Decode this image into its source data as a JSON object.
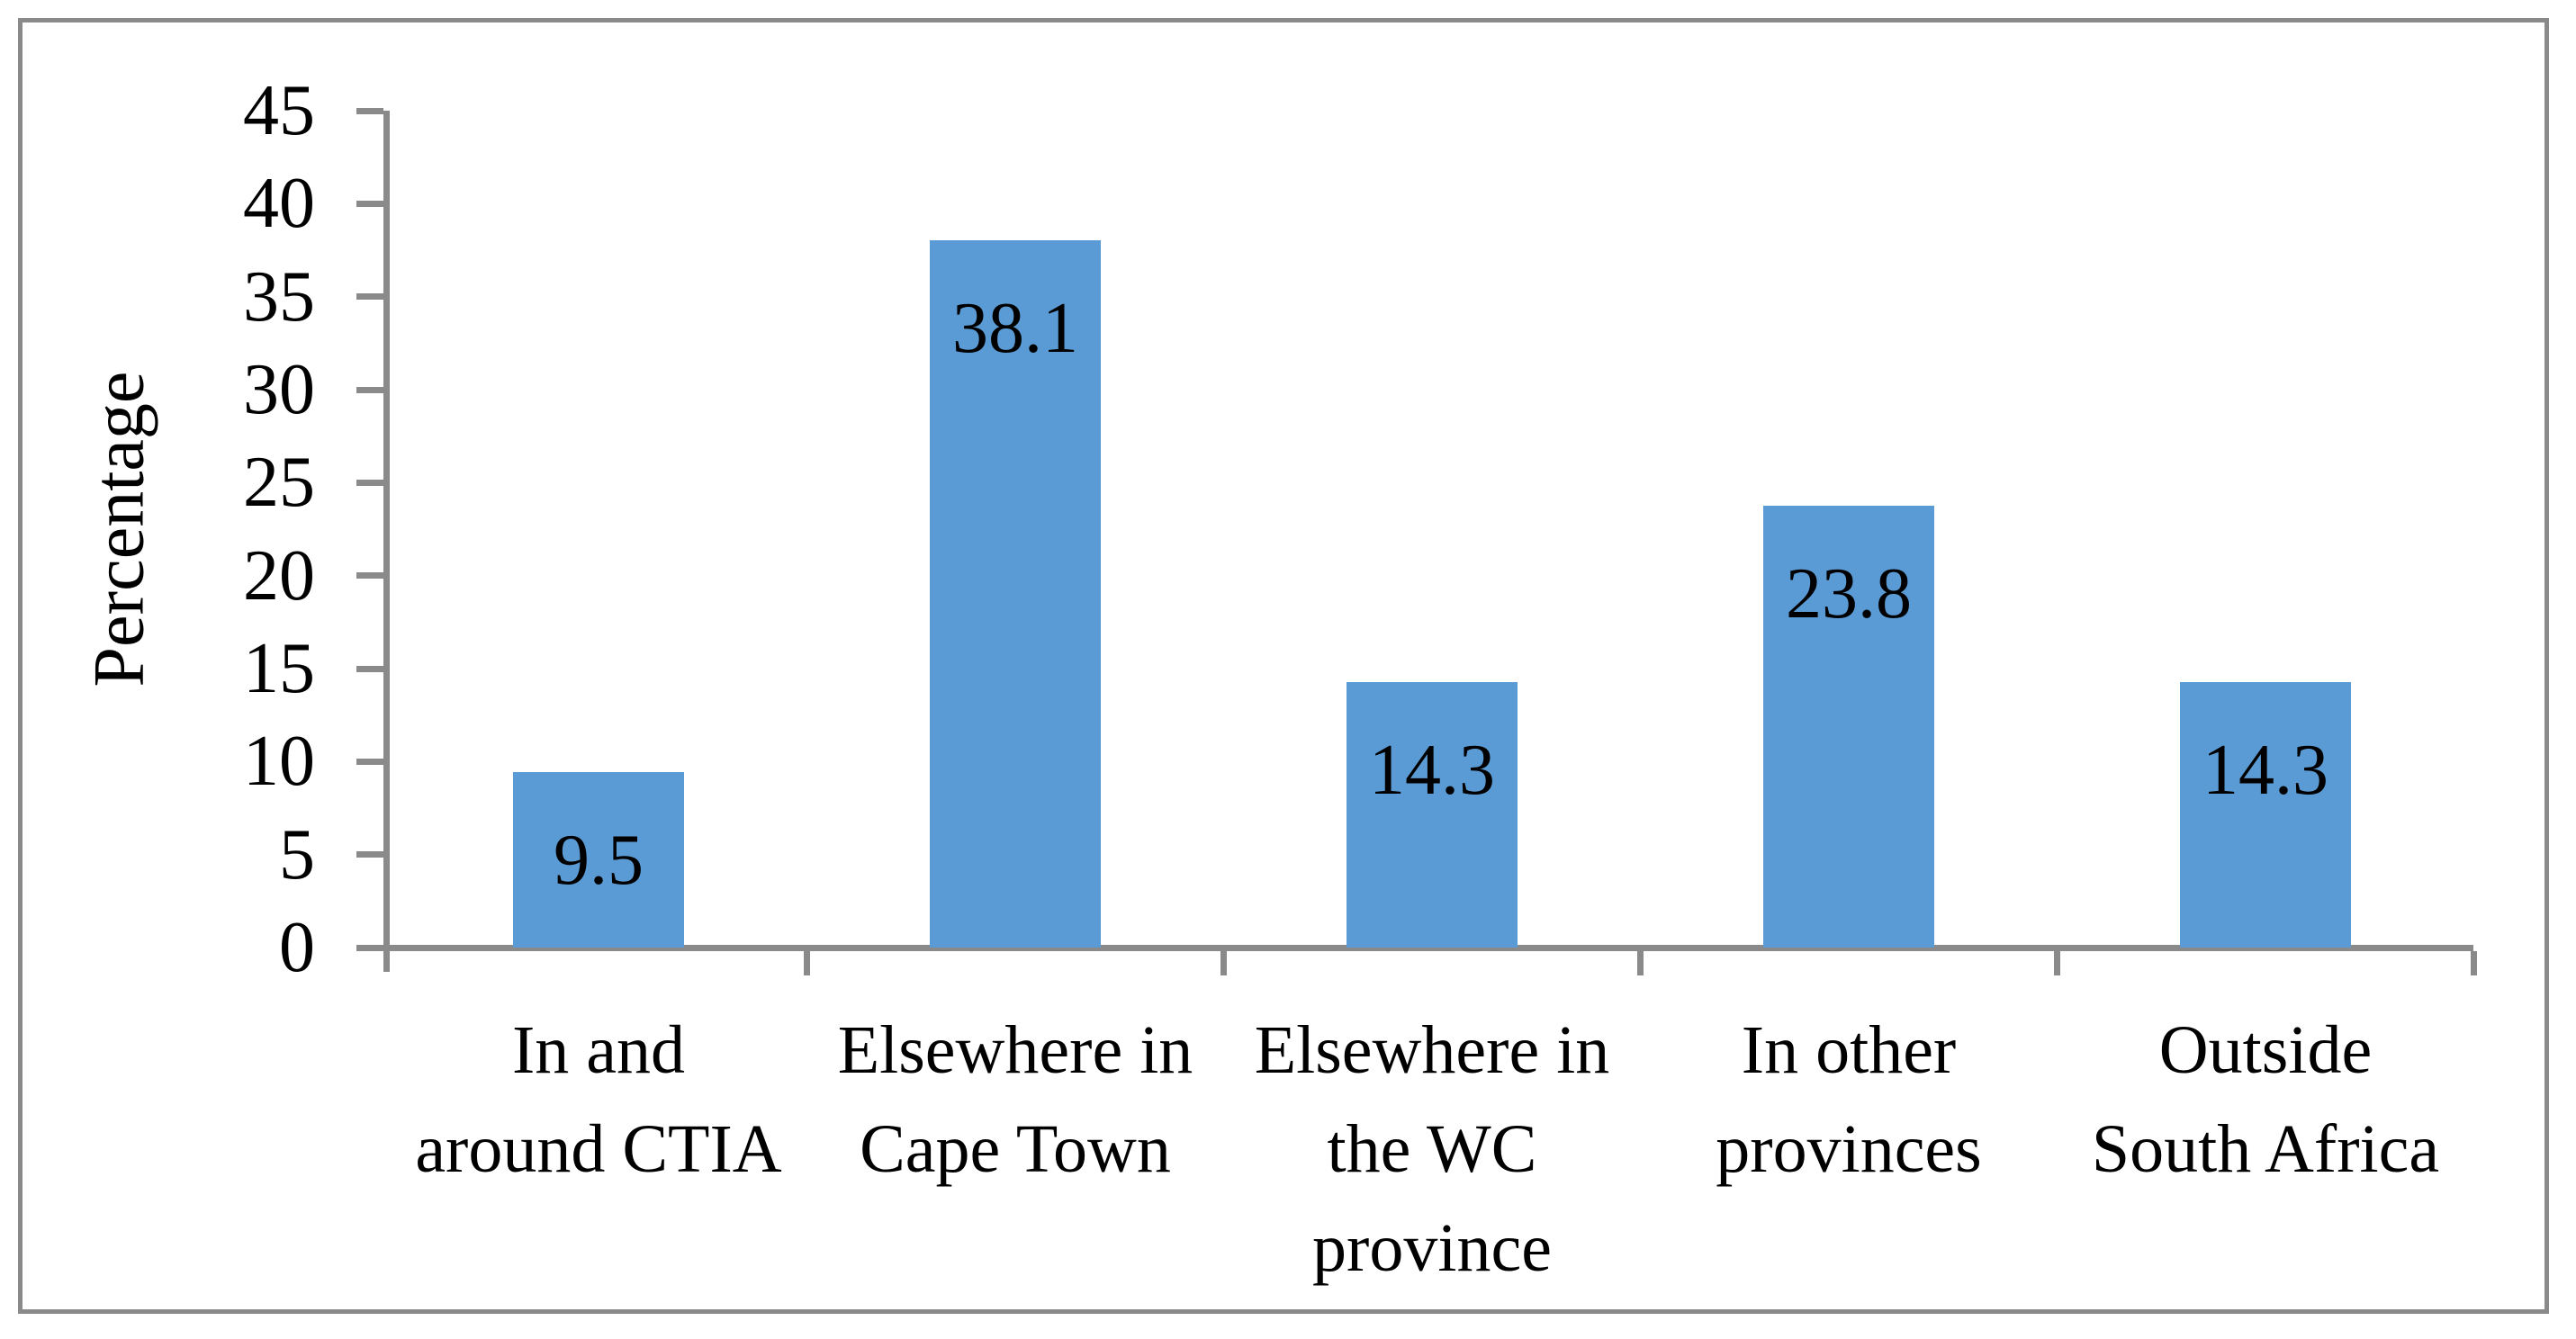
{
  "figure": {
    "background": "#FFFFFF",
    "border_color": "#8A8A8A"
  },
  "chart_data": {
    "type": "bar",
    "title": "",
    "xlabel": "",
    "ylabel": "Percentage",
    "categories": [
      "In and around CTIA",
      "Elsewhere in Cape Town",
      "Elsewhere in the WC province",
      "In other provinces",
      "Outside South Africa"
    ],
    "category_lines": [
      [
        "In and",
        "around CTIA"
      ],
      [
        "Elsewhere in",
        "Cape Town"
      ],
      [
        "Elsewhere in",
        "the WC",
        "province"
      ],
      [
        "In other",
        "provinces"
      ],
      [
        "Outside",
        "South Africa"
      ]
    ],
    "values": [
      9.5,
      38.1,
      14.3,
      23.8,
      14.3
    ],
    "data_labels": [
      "9.5",
      "38.1",
      "14.3",
      "23.8",
      "14.3"
    ],
    "ylim": [
      0,
      45
    ],
    "ytick_step": 5,
    "ytick_labels": [
      "0",
      "5",
      "10",
      "15",
      "20",
      "25",
      "30",
      "35",
      "40",
      "45"
    ],
    "grid": false,
    "legend": "none",
    "data_label_position": "inside-end",
    "bar_color": "#5B9BD5",
    "axis_color": "#8A8A8A",
    "text_color": "#000000"
  }
}
